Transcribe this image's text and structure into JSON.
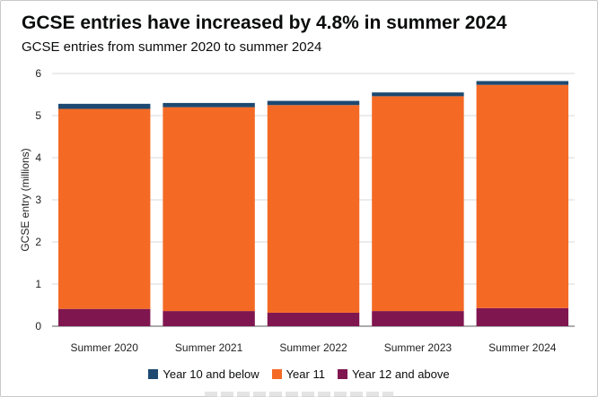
{
  "title": "GCSE entries have increased by 4.8% in summer 2024",
  "subtitle": "GCSE entries from summer 2020 to summer 2024",
  "colors": {
    "year10": "#1d4971",
    "year11": "#f46a25",
    "year12": "#801650",
    "grid": "#d9d9d9",
    "axis": "#5a5a5a"
  },
  "legend": [
    {
      "label": "Year 10 and below",
      "color_key": "year10"
    },
    {
      "label": "Year 11",
      "color_key": "year11"
    },
    {
      "label": "Year 12 and above",
      "color_key": "year12"
    }
  ],
  "chart_data": {
    "type": "bar",
    "stacked": true,
    "ylabel": "GCSE entry (millions)",
    "xlabel": "",
    "ylim": [
      0,
      6
    ],
    "yticks": [
      0,
      1,
      2,
      3,
      4,
      5,
      6
    ],
    "grid": true,
    "legend_position": "bottom",
    "categories": [
      "Summer 2020",
      "Summer 2021",
      "Summer 2022",
      "Summer 2023",
      "Summer 2024"
    ],
    "series": [
      {
        "name": "Year 12 and above",
        "color_key": "year12",
        "values": [
          0.41,
          0.36,
          0.32,
          0.36,
          0.43
        ]
      },
      {
        "name": "Year 11",
        "color_key": "year11",
        "values": [
          4.75,
          4.84,
          4.93,
          5.1,
          5.3
        ]
      },
      {
        "name": "Year 10 and below",
        "color_key": "year10",
        "values": [
          0.12,
          0.1,
          0.1,
          0.09,
          0.09
        ]
      }
    ]
  }
}
